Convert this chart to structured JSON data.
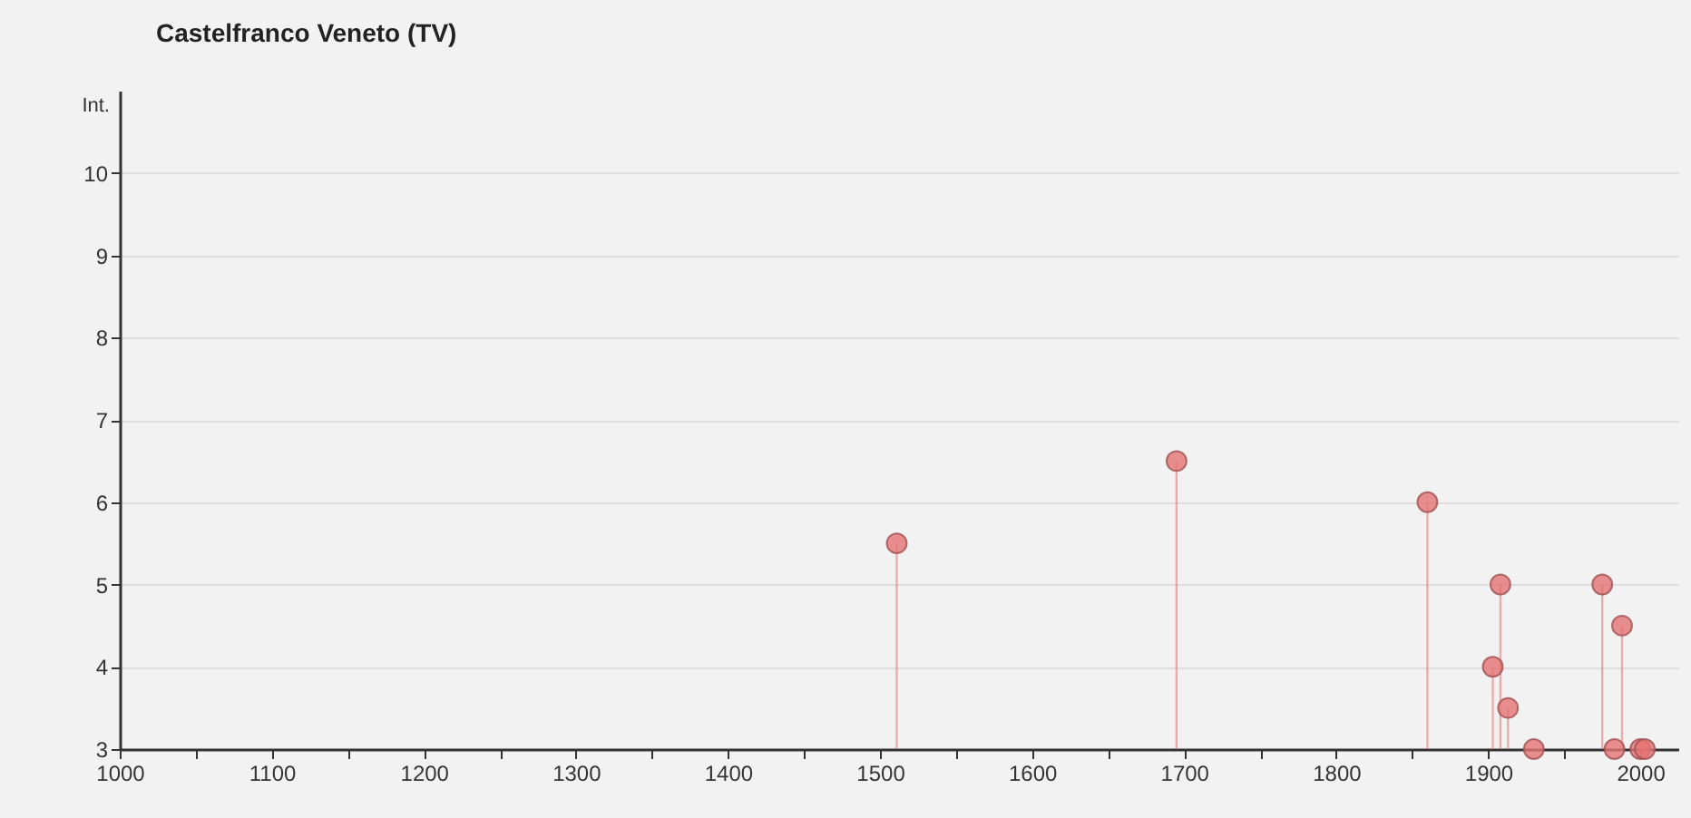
{
  "chart_data": {
    "type": "lollipop",
    "title": "Castelfranco Veneto (TV)",
    "ylabel": "Int.",
    "x": [
      1511,
      1695,
      1860,
      1903,
      1908,
      1913,
      1930,
      1975,
      1983,
      1988,
      2000,
      2003
    ],
    "series": [
      {
        "color": "#e57373",
        "values": [
          5.5,
          6.5,
          6,
          4,
          5,
          3.5,
          3,
          5,
          3,
          4.5,
          3,
          3
        ]
      }
    ],
    "xlim": [
      1000,
      2025
    ],
    "xticks": [
      1000,
      {
        "value": 1050,
        "label": null
      },
      1100,
      {
        "value": 1150,
        "label": null
      },
      1200,
      {
        "value": 1250,
        "label": null
      },
      1300,
      {
        "value": 1350,
        "label": null
      },
      1400,
      {
        "value": 1450,
        "label": null
      },
      1500,
      {
        "value": 1550,
        "label": null
      },
      1600,
      {
        "value": 1650,
        "label": null
      },
      1700,
      {
        "value": 1750,
        "label": null
      },
      1800,
      {
        "value": 1850,
        "label": null
      },
      1900,
      {
        "value": 1950,
        "label": null
      },
      2000
    ],
    "ylim": [
      3,
      11
    ],
    "yticks": [
      3,
      4,
      5,
      6,
      7,
      8,
      9,
      10
    ],
    "grid": "y",
    "marker": "circle"
  }
}
